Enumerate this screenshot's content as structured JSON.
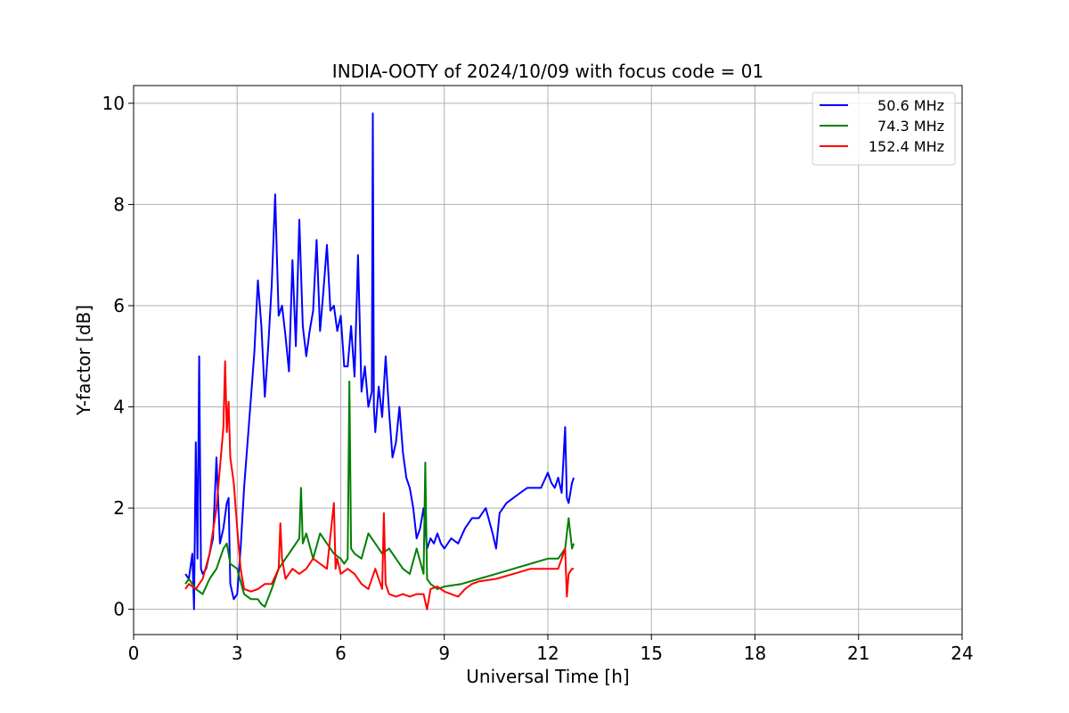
{
  "chart_data": {
    "type": "line",
    "title": "INDIA-OOTY of 2024/10/09 with focus code = 01",
    "xlabel": "Universal Time [h]",
    "ylabel": "Y-factor [dB]",
    "xlim": [
      0,
      24
    ],
    "ylim": [
      -0.5,
      10.35
    ],
    "xticks": [
      0,
      3,
      6,
      9,
      12,
      15,
      18,
      21,
      24
    ],
    "yticks": [
      0,
      2,
      4,
      6,
      8,
      10
    ],
    "grid": true,
    "legend_position": "top-right",
    "series": [
      {
        "name": "50.6 MHz",
        "color": "#0000ff",
        "x": [
          1.5,
          1.6,
          1.7,
          1.75,
          1.8,
          1.85,
          1.9,
          1.95,
          2.0,
          2.1,
          2.2,
          2.3,
          2.4,
          2.5,
          2.6,
          2.7,
          2.75,
          2.8,
          2.9,
          3.0,
          3.1,
          3.2,
          3.3,
          3.4,
          3.5,
          3.6,
          3.7,
          3.8,
          3.9,
          4.0,
          4.1,
          4.15,
          4.2,
          4.3,
          4.4,
          4.5,
          4.6,
          4.7,
          4.8,
          4.9,
          5.0,
          5.1,
          5.2,
          5.3,
          5.4,
          5.5,
          5.6,
          5.7,
          5.8,
          5.9,
          6.0,
          6.1,
          6.2,
          6.3,
          6.4,
          6.5,
          6.6,
          6.7,
          6.8,
          6.9,
          6.93,
          6.96,
          7.0,
          7.1,
          7.2,
          7.3,
          7.4,
          7.5,
          7.6,
          7.7,
          7.8,
          7.9,
          8.0,
          8.1,
          8.2,
          8.3,
          8.4,
          8.5,
          8.6,
          8.7,
          8.8,
          8.9,
          9.0,
          9.2,
          9.4,
          9.6,
          9.8,
          10.0,
          10.2,
          10.4,
          10.5,
          10.6,
          10.8,
          11.0,
          11.2,
          11.4,
          11.6,
          11.8,
          12.0,
          12.1,
          12.2,
          12.3,
          12.4,
          12.5,
          12.55,
          12.6,
          12.7,
          12.75
        ],
        "values": [
          0.7,
          0.6,
          1.1,
          0.0,
          3.3,
          1.0,
          5.0,
          0.8,
          0.7,
          0.8,
          1.1,
          1.4,
          3.0,
          1.3,
          1.6,
          2.1,
          2.2,
          0.5,
          0.2,
          0.3,
          1.2,
          2.4,
          3.3,
          4.2,
          5.1,
          6.5,
          5.6,
          4.2,
          5.2,
          6.4,
          8.2,
          7.0,
          5.8,
          6.0,
          5.4,
          4.7,
          6.9,
          5.2,
          7.7,
          5.6,
          5.0,
          5.5,
          5.9,
          7.3,
          5.5,
          6.3,
          7.2,
          5.9,
          6.0,
          5.5,
          5.8,
          4.8,
          4.8,
          5.6,
          4.6,
          7.0,
          4.3,
          4.8,
          4.0,
          4.3,
          9.8,
          4.0,
          3.5,
          4.4,
          3.8,
          5.0,
          3.9,
          3.0,
          3.3,
          4.0,
          3.1,
          2.6,
          2.4,
          2.0,
          1.4,
          1.6,
          2.0,
          1.2,
          1.4,
          1.3,
          1.5,
          1.3,
          1.2,
          1.4,
          1.3,
          1.6,
          1.8,
          1.8,
          2.0,
          1.5,
          1.2,
          1.9,
          2.1,
          2.2,
          2.3,
          2.4,
          2.4,
          2.4,
          2.7,
          2.5,
          2.4,
          2.6,
          2.3,
          3.6,
          2.2,
          2.1,
          2.5,
          2.6
        ]
      },
      {
        "name": "74.3 MHz",
        "color": "#008000",
        "x": [
          1.5,
          1.6,
          1.8,
          2.0,
          2.2,
          2.4,
          2.6,
          2.7,
          2.8,
          3.0,
          3.2,
          3.4,
          3.6,
          3.7,
          3.8,
          4.0,
          4.2,
          4.4,
          4.6,
          4.8,
          4.85,
          4.9,
          5.0,
          5.2,
          5.4,
          5.6,
          5.8,
          6.0,
          6.1,
          6.2,
          6.25,
          6.3,
          6.4,
          6.6,
          6.8,
          7.0,
          7.2,
          7.4,
          7.6,
          7.8,
          8.0,
          8.2,
          8.4,
          8.45,
          8.5,
          8.6,
          8.8,
          9.0,
          9.5,
          10.0,
          10.5,
          11.0,
          11.5,
          12.0,
          12.3,
          12.4,
          12.5,
          12.6,
          12.7,
          12.75
        ],
        "values": [
          0.5,
          0.6,
          0.4,
          0.3,
          0.6,
          0.8,
          1.2,
          1.3,
          0.9,
          0.8,
          0.3,
          0.2,
          0.2,
          0.1,
          0.05,
          0.4,
          0.8,
          1.0,
          1.2,
          1.4,
          2.4,
          1.3,
          1.5,
          1.0,
          1.5,
          1.3,
          1.1,
          1.0,
          0.9,
          1.0,
          4.5,
          1.2,
          1.1,
          1.0,
          1.5,
          1.3,
          1.1,
          1.2,
          1.0,
          0.8,
          0.7,
          1.2,
          0.7,
          2.9,
          0.6,
          0.5,
          0.4,
          0.45,
          0.5,
          0.6,
          0.7,
          0.8,
          0.9,
          1.0,
          1.0,
          1.1,
          1.2,
          1.8,
          1.2,
          1.3
        ]
      },
      {
        "name": "152.4 MHz",
        "color": "#ff0000",
        "x": [
          1.5,
          1.6,
          1.8,
          2.0,
          2.2,
          2.4,
          2.5,
          2.6,
          2.65,
          2.7,
          2.75,
          2.8,
          2.9,
          3.0,
          3.1,
          3.2,
          3.4,
          3.6,
          3.8,
          4.0,
          4.2,
          4.25,
          4.3,
          4.4,
          4.6,
          4.8,
          5.0,
          5.2,
          5.4,
          5.6,
          5.8,
          5.85,
          5.9,
          6.0,
          6.2,
          6.4,
          6.6,
          6.8,
          7.0,
          7.2,
          7.25,
          7.3,
          7.4,
          7.6,
          7.8,
          8.0,
          8.2,
          8.4,
          8.5,
          8.6,
          8.8,
          9.0,
          9.2,
          9.4,
          9.6,
          9.8,
          10.0,
          10.5,
          11.0,
          11.5,
          12.0,
          12.3,
          12.5,
          12.55,
          12.6,
          12.7,
          12.75
        ],
        "values": [
          0.4,
          0.5,
          0.4,
          0.6,
          1.1,
          2.0,
          2.8,
          3.6,
          4.9,
          3.5,
          4.1,
          3.0,
          2.5,
          1.6,
          0.8,
          0.4,
          0.35,
          0.4,
          0.5,
          0.5,
          0.8,
          1.7,
          1.0,
          0.6,
          0.8,
          0.7,
          0.8,
          1.0,
          0.9,
          0.8,
          2.1,
          0.8,
          1.0,
          0.7,
          0.8,
          0.7,
          0.5,
          0.4,
          0.8,
          0.4,
          1.9,
          0.5,
          0.3,
          0.25,
          0.3,
          0.25,
          0.3,
          0.3,
          0.0,
          0.4,
          0.45,
          0.35,
          0.3,
          0.25,
          0.4,
          0.5,
          0.55,
          0.6,
          0.7,
          0.8,
          0.8,
          0.8,
          1.2,
          0.25,
          0.7,
          0.8,
          0.8
        ]
      }
    ]
  }
}
